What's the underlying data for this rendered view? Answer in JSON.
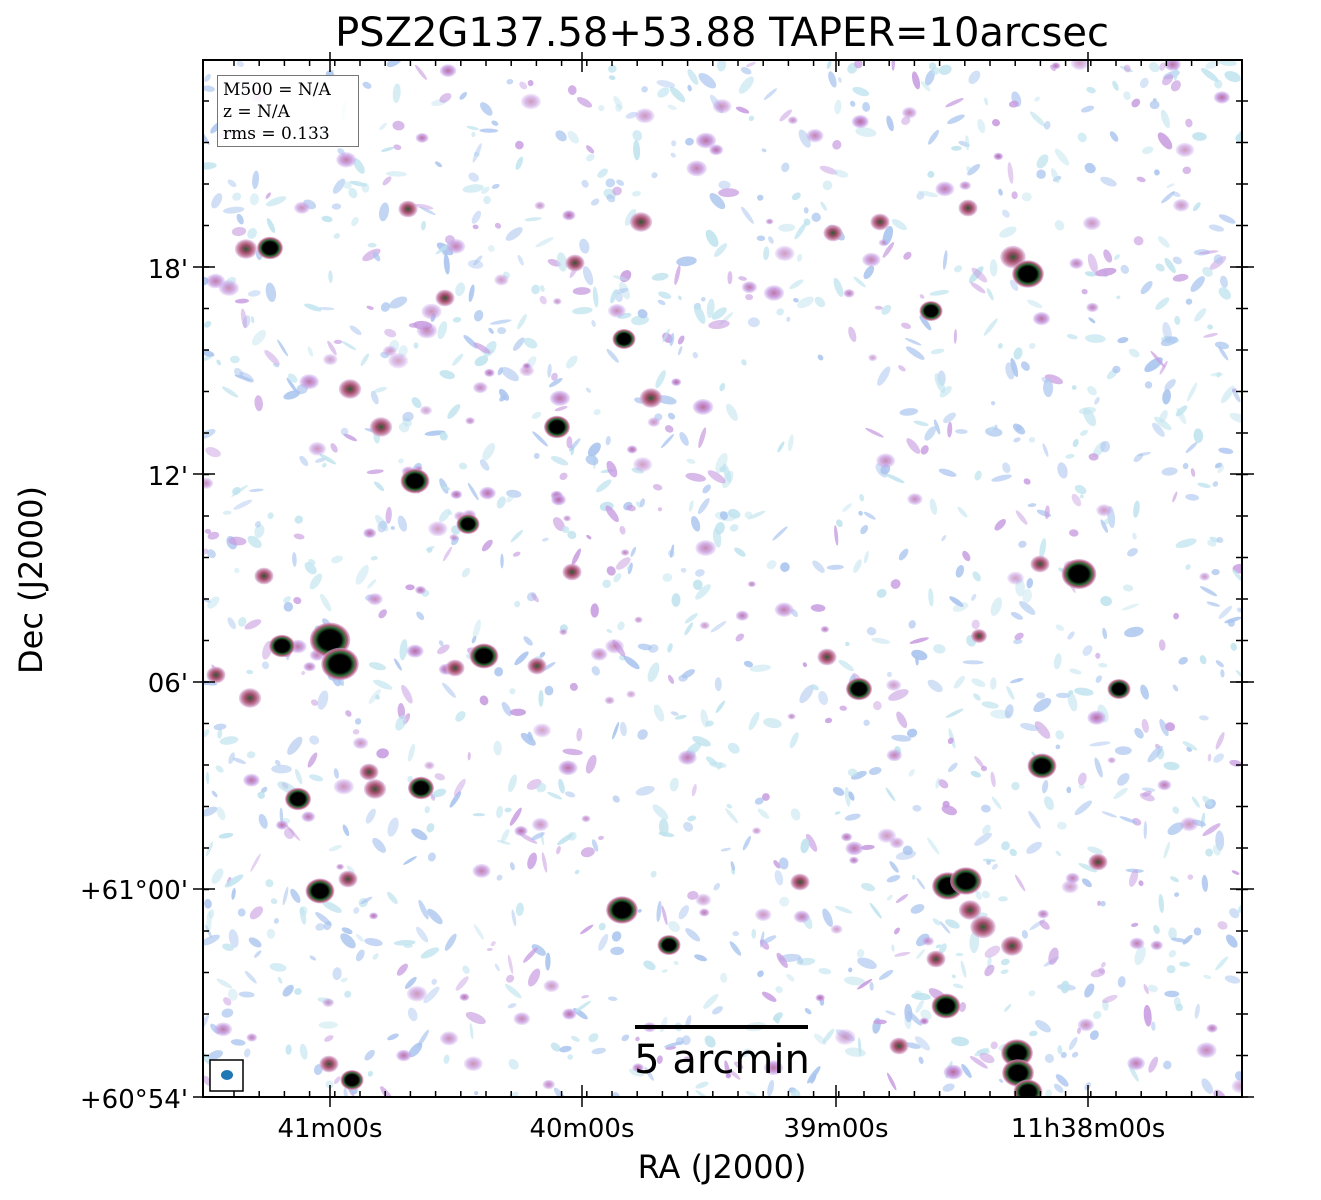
{
  "title": "PSZ2G137.58+53.88 TAPER=10arcsec",
  "xlabel": "RA (J2000)",
  "ylabel": "Dec (J2000)",
  "x_ticks": [
    "41m00s",
    "40m00s",
    "39m00s",
    "11h38m00s"
  ],
  "y_ticks": [
    "+60°54'",
    "+61°00'",
    "06'",
    "12'",
    "18'"
  ],
  "info_box": {
    "m500": "M500 = N/A",
    "z": "z = N/A",
    "rms": "rms = 0.133"
  },
  "scale_bar": {
    "label": "5 arcmin",
    "length_arcmin": 5
  },
  "colors": {
    "noise_blue": "#a9c4ee",
    "noise_cyan": "#bfe3ee",
    "noise_purple": "#c79be0",
    "noise_pink": "#c98aa6",
    "source_core": "#000000",
    "beam": "#1f77b4"
  }
}
